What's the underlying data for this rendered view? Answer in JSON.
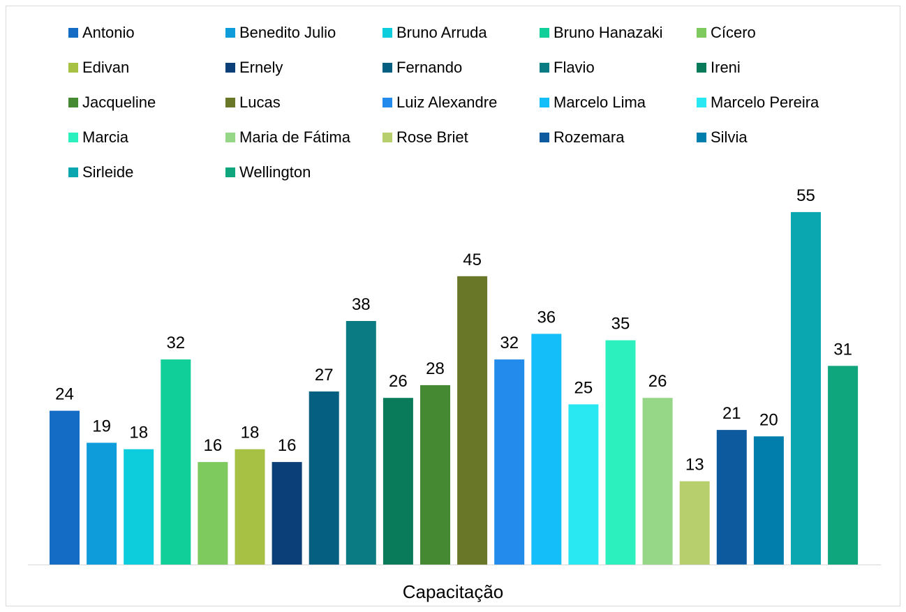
{
  "chart_data": {
    "type": "bar",
    "title": "",
    "xlabel": "Capacitação",
    "ylabel": "",
    "ylim": [
      0,
      60
    ],
    "grid": false,
    "legend_position": "top",
    "category": "Capacitação",
    "series": [
      {
        "name": "Antonio",
        "value": 24,
        "color": "#156CC4"
      },
      {
        "name": "Benedito Julio",
        "value": 19,
        "color": "#0E9CDB"
      },
      {
        "name": "Bruno Arruda",
        "value": 18,
        "color": "#0DCCDB"
      },
      {
        "name": "Bruno Hanazaki",
        "value": 32,
        "color": "#10CF98"
      },
      {
        "name": "Cícero",
        "value": 16,
        "color": "#7ECA5F"
      },
      {
        "name": "Edivan",
        "value": 18,
        "color": "#A6C143"
      },
      {
        "name": "Ernely",
        "value": 16,
        "color": "#0B3F77"
      },
      {
        "name": "Fernando",
        "value": 27,
        "color": "#045F80"
      },
      {
        "name": "Flavio",
        "value": 38,
        "color": "#0A7B82"
      },
      {
        "name": "Ireni",
        "value": 26,
        "color": "#0A7B5A"
      },
      {
        "name": "Jacqueline",
        "value": 28,
        "color": "#458A32"
      },
      {
        "name": "Lucas",
        "value": 45,
        "color": "#687828"
      },
      {
        "name": "Luiz Alexandre",
        "value": 32,
        "color": "#228BEB"
      },
      {
        "name": "Marcelo Lima",
        "value": 36,
        "color": "#13BEF9"
      },
      {
        "name": "Marcelo Pereira",
        "value": 25,
        "color": "#29E8F2"
      },
      {
        "name": "Marcia",
        "value": 35,
        "color": "#2CF0BD"
      },
      {
        "name": "Maria de Fátima",
        "value": 26,
        "color": "#95D687"
      },
      {
        "name": "Rose Briet",
        "value": 13,
        "color": "#B8CF6D"
      },
      {
        "name": "Rozemara",
        "value": 21,
        "color": "#0E5A9E"
      },
      {
        "name": "Silvia",
        "value": 20,
        "color": "#027EAC"
      },
      {
        "name": "Sirleide",
        "value": 55,
        "color": "#0BA7B0"
      },
      {
        "name": "Wellington",
        "value": 31,
        "color": "#0FA67D"
      }
    ]
  }
}
